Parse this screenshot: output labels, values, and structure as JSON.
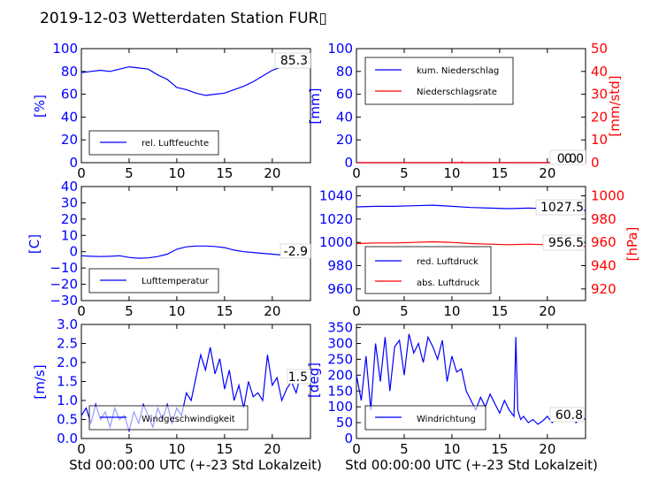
{
  "title": "2019-12-03 Wetterdaten Station FUR▯",
  "colors": {
    "primary": "#0000ff",
    "secondary": "#ff0000",
    "axis": "#000000"
  },
  "chart_data": [
    {
      "type": "line",
      "panel": "humidity",
      "x_range": [
        0,
        24
      ],
      "xticks": [
        "0",
        "5",
        "10",
        "15",
        "20"
      ],
      "ylim": [
        0,
        100
      ],
      "yticks": [
        "0",
        "20",
        "40",
        "60",
        "80",
        "100"
      ],
      "ylabel": "[%]",
      "legend": "upper-left? no: lower-left",
      "series": [
        {
          "name": "rel. Luftfeuchte",
          "color": "#0000ff",
          "x": [
            0,
            1,
            2,
            3,
            4,
            5,
            6,
            7,
            8,
            9,
            10,
            11,
            12,
            13,
            14,
            15,
            16,
            17,
            18,
            19,
            20,
            21,
            22,
            23,
            24
          ],
          "values": [
            79,
            80,
            81,
            80,
            82,
            84,
            83,
            82,
            77,
            73,
            66,
            64,
            61,
            59,
            60,
            61,
            64,
            67,
            71,
            76,
            81,
            84,
            85,
            85,
            85.3
          ]
        }
      ],
      "last_value": "85.3"
    },
    {
      "type": "line",
      "panel": "precipitation",
      "x_range": [
        0,
        24
      ],
      "xticks": [
        "0",
        "5",
        "10",
        "15",
        "20"
      ],
      "ylim": [
        0,
        100
      ],
      "yticks": [
        "0",
        "20",
        "40",
        "60",
        "80",
        "100"
      ],
      "ylabel": "[mm]",
      "ylim_right": [
        0,
        50
      ],
      "yticks_right": [
        "0",
        "10",
        "20",
        "30",
        "40",
        "50"
      ],
      "ylabel_right": "[mm/std]",
      "series": [
        {
          "name": "kum. Niederschlag",
          "color": "#0000ff",
          "x": [
            0,
            24
          ],
          "values": [
            0,
            0
          ]
        },
        {
          "name": "Niederschlagsrate",
          "color": "#ff0000",
          "x": [
            0,
            11,
            11.05,
            11.1,
            24
          ],
          "values": [
            0,
            0,
            0.4,
            0,
            0
          ]
        }
      ],
      "last_value": "0.0",
      "last_value_2": "0.0"
    },
    {
      "type": "line",
      "panel": "temperature",
      "x_range": [
        0,
        24
      ],
      "xticks": [
        "0",
        "5",
        "10",
        "15",
        "20"
      ],
      "ylim": [
        -30,
        40
      ],
      "yticks": [
        "−30",
        "−20",
        "−10",
        "0",
        "10",
        "20",
        "30",
        "40"
      ],
      "ylabel": "[C]",
      "series": [
        {
          "name": "Lufttemperatur",
          "color": "#0000ff",
          "x": [
            0,
            1,
            2,
            3,
            4,
            5,
            6,
            7,
            8,
            9,
            10,
            11,
            12,
            13,
            14,
            15,
            16,
            17,
            18,
            19,
            20,
            21,
            22,
            23,
            24
          ],
          "values": [
            -2.5,
            -2.8,
            -3,
            -2.8,
            -2.5,
            -3.5,
            -4,
            -3.8,
            -3,
            -1.5,
            1.5,
            3,
            3.5,
            3.5,
            3.2,
            2.5,
            1,
            0,
            -0.5,
            -1,
            -1.5,
            -2,
            -2.5,
            -2.8,
            -2.9
          ]
        }
      ],
      "last_value": "-2.9"
    },
    {
      "type": "line",
      "panel": "pressure",
      "x_range": [
        0,
        24
      ],
      "xticks": [
        "0",
        "5",
        "10",
        "15",
        "20"
      ],
      "ylim": [
        950,
        1048
      ],
      "yticks": [
        "960",
        "980",
        "1000",
        "1020",
        "1040"
      ],
      "ylim_right": [
        910,
        1008
      ],
      "yticks_right": [
        "920",
        "940",
        "960",
        "980",
        "1000"
      ],
      "ylabel_right": "[hPa]",
      "series": [
        {
          "name": "red. Luftdruck",
          "color": "#0000ff",
          "x": [
            0,
            2,
            4,
            6,
            8,
            10,
            12,
            14,
            16,
            18,
            20,
            22,
            24
          ],
          "values": [
            1030.5,
            1031,
            1031,
            1031.5,
            1032,
            1031,
            1030,
            1029.5,
            1029,
            1029.5,
            1029,
            1028,
            1027.5
          ]
        },
        {
          "name": "abs. Luftdruck",
          "color": "#ff0000",
          "x": [
            0,
            2,
            4,
            6,
            8,
            10,
            12,
            14,
            16,
            18,
            20,
            22,
            24
          ],
          "values": [
            959,
            959.5,
            959.5,
            960,
            960.5,
            960,
            959,
            958.5,
            958,
            958.5,
            958,
            957,
            956.5
          ]
        }
      ],
      "last_value": "1027.5",
      "last_value_2": "956.5"
    },
    {
      "type": "line",
      "panel": "windspeed",
      "x_range": [
        0,
        24
      ],
      "xticks": [
        "0",
        "5",
        "10",
        "15",
        "20"
      ],
      "ylim": [
        0,
        3
      ],
      "yticks": [
        "0.0",
        "0.5",
        "1.0",
        "1.5",
        "2.0",
        "2.5",
        "3.0"
      ],
      "ylabel": "[m/s]",
      "xlabel": "Std 00:00:00 UTC (+-23 Std Lokalzeit)",
      "series": [
        {
          "name": "Windgeschwindigkeit",
          "color": "#0000ff",
          "x": [
            0,
            0.5,
            1,
            1.5,
            2,
            2.5,
            3,
            3.5,
            4,
            4.5,
            5,
            5.5,
            6,
            6.5,
            7,
            7.5,
            8,
            8.5,
            9,
            9.5,
            10,
            10.5,
            11,
            11.5,
            12,
            12.5,
            13,
            13.5,
            14,
            14.5,
            15,
            15.5,
            16,
            16.5,
            17,
            17.5,
            18,
            18.5,
            19,
            19.5,
            20,
            20.5,
            21,
            21.5,
            22,
            22.5,
            23,
            23.5,
            24
          ],
          "values": [
            0.6,
            0.8,
            0.4,
            0.9,
            0.5,
            0.7,
            0.3,
            0.8,
            0.5,
            0.6,
            0.2,
            0.7,
            0.4,
            0.9,
            0.6,
            0.3,
            0.8,
            0.5,
            0.9,
            0.4,
            0.8,
            0.6,
            1.2,
            1.0,
            1.6,
            2.2,
            1.8,
            2.4,
            1.7,
            2.1,
            1.3,
            1.8,
            1.0,
            1.4,
            0.8,
            1.5,
            1.1,
            1.2,
            1.0,
            2.2,
            1.4,
            1.6,
            1.0,
            1.3,
            1.5,
            1.2,
            1.7,
            1.5,
            1.5
          ]
        }
      ],
      "last_value": "1.5"
    },
    {
      "type": "line",
      "panel": "winddirection",
      "x_range": [
        0,
        24
      ],
      "xticks": [
        "0",
        "5",
        "10",
        "15",
        "20"
      ],
      "ylim": [
        0,
        360
      ],
      "yticks": [
        "0",
        "50",
        "100",
        "150",
        "200",
        "250",
        "300",
        "350"
      ],
      "ylabel": "[deg]",
      "xlabel": "Std 00:00:00 UTC (+-23 Std Lokalzeit)",
      "series": [
        {
          "name": "Windrichtung",
          "color": "#0000ff",
          "x": [
            0,
            0.5,
            1,
            1.5,
            2,
            2.5,
            3,
            3.5,
            4,
            4.5,
            5,
            5.5,
            6,
            6.5,
            7,
            7.5,
            8,
            8.5,
            9,
            9.5,
            10,
            10.5,
            11,
            11.5,
            12,
            12.5,
            13,
            13.5,
            14,
            14.5,
            15,
            15.5,
            16,
            16.5,
            16.7,
            16.9,
            17.2,
            17.5,
            18,
            18.5,
            19,
            19.5,
            20,
            20.5,
            21,
            21.5,
            22,
            22.5,
            23,
            23.5,
            24
          ],
          "values": [
            200,
            120,
            260,
            90,
            300,
            180,
            320,
            150,
            290,
            310,
            200,
            330,
            270,
            300,
            240,
            320,
            290,
            250,
            310,
            180,
            260,
            210,
            220,
            150,
            120,
            90,
            130,
            100,
            140,
            110,
            80,
            120,
            90,
            70,
            320,
            90,
            60,
            70,
            50,
            60,
            45,
            55,
            70,
            50,
            65,
            55,
            60,
            75,
            50,
            65,
            60.8
          ]
        }
      ],
      "last_value": "60.8"
    }
  ]
}
